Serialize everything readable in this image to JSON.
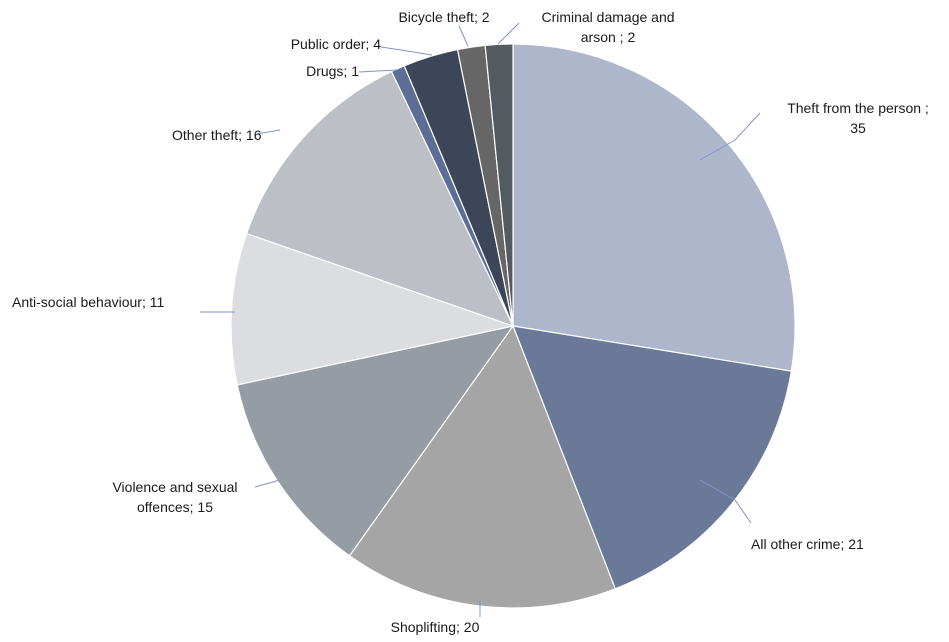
{
  "chart_data": {
    "type": "pie",
    "title": "",
    "total": 127,
    "slices": [
      {
        "name": "Theft from the person",
        "value": 35,
        "color": "#aeb6cc",
        "label_lines": [
          "Theft from the person ;",
          "35"
        ]
      },
      {
        "name": "All other crime",
        "value": 21,
        "color": "#6b7998",
        "label_lines": [
          "All other crime; 21"
        ]
      },
      {
        "name": "Shoplifting",
        "value": 20,
        "color": "#a5a5a5",
        "label_lines": [
          "Shoplifting; 20"
        ]
      },
      {
        "name": "Violence and sexual offences",
        "value": 15,
        "color": "#959ca3",
        "label_lines": [
          "Violence and sexual",
          "offences; 15"
        ]
      },
      {
        "name": "Anti-social behaviour",
        "value": 11,
        "color": "#dcdde0",
        "label_lines": [
          "Anti-social behaviour; 11"
        ]
      },
      {
        "name": "Other theft",
        "value": 16,
        "color": "#bcc0c6",
        "label_lines": [
          "Other theft; 16"
        ]
      },
      {
        "name": "Drugs",
        "value": 1,
        "color": "#5c6e95",
        "label_lines": [
          "Drugs; 1"
        ]
      },
      {
        "name": "Public order",
        "value": 4,
        "color": "#3d4659",
        "label_lines": [
          "Public order; 4"
        ]
      },
      {
        "name": "Bicycle theft",
        "value": 2,
        "color": "#666666",
        "label_lines": [
          "Bicycle theft; 2"
        ]
      },
      {
        "name": "Criminal damage and arson",
        "value": 2,
        "color": "#535a60",
        "label_lines": [
          "Criminal damage and",
          "arson ; 2"
        ]
      }
    ],
    "start_angle_deg": 0,
    "direction": "clockwise",
    "legend": "none"
  }
}
